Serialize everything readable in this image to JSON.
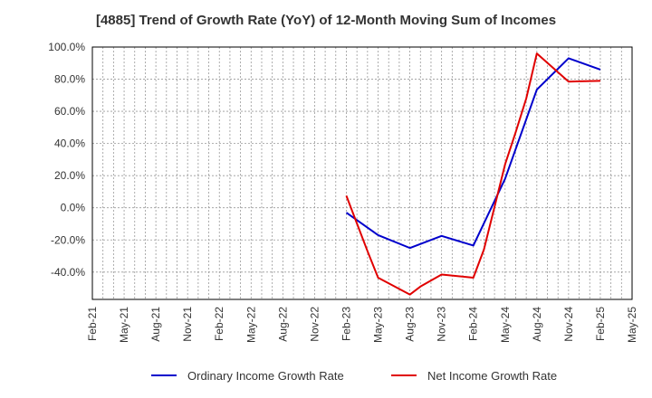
{
  "chart_data": {
    "type": "line",
    "title": "[4885]  Trend of Growth Rate (YoY) of 12-Month Moving Sum of Incomes",
    "xlabel": "",
    "ylabel": "",
    "ylim": [
      -57,
      100
    ],
    "yticks": [
      100,
      80,
      60,
      40,
      20,
      0,
      -20,
      -40
    ],
    "ytick_labels": [
      "100.0%",
      "80.0%",
      "60.0%",
      "40.0%",
      "20.0%",
      "0.0%",
      "-20.0%",
      "-40.0%"
    ],
    "x_categories": [
      "Feb-21",
      "Mar-21",
      "Apr-21",
      "May-21",
      "Jun-21",
      "Jul-21",
      "Aug-21",
      "Sep-21",
      "Oct-21",
      "Nov-21",
      "Dec-21",
      "Jan-22",
      "Feb-22",
      "Mar-22",
      "Apr-22",
      "May-22",
      "Jun-22",
      "Jul-22",
      "Aug-22",
      "Sep-22",
      "Oct-22",
      "Nov-22",
      "Dec-22",
      "Jan-23",
      "Feb-23",
      "Mar-23",
      "Apr-23",
      "May-23",
      "Jun-23",
      "Jul-23",
      "Aug-23",
      "Sep-23",
      "Oct-23",
      "Nov-23",
      "Dec-23",
      "Jan-24",
      "Feb-24",
      "Mar-24",
      "Apr-24",
      "May-24",
      "Jun-24",
      "Jul-24",
      "Aug-24",
      "Sep-24",
      "Oct-24",
      "Nov-24",
      "Dec-24",
      "Jan-25",
      "Feb-25",
      "Mar-25",
      "Apr-25",
      "May-25"
    ],
    "x_tick_labels": [
      "Feb-21",
      "May-21",
      "Aug-21",
      "Nov-21",
      "Feb-22",
      "May-22",
      "Aug-22",
      "Nov-22",
      "Feb-23",
      "May-23",
      "Aug-23",
      "Nov-23",
      "Feb-24",
      "May-24",
      "Aug-24",
      "Nov-24",
      "Feb-25",
      "May-25"
    ],
    "grid": true,
    "legend_position": "bottom",
    "series": [
      {
        "name": "Ordinary Income Growth Rate",
        "color": "#0000cc",
        "points": [
          {
            "x": "Feb-23",
            "y": -3
          },
          {
            "x": "May-23",
            "y": -17
          },
          {
            "x": "Aug-23",
            "y": -25
          },
          {
            "x": "Nov-23",
            "y": -17.5
          },
          {
            "x": "Feb-24",
            "y": -23.5
          },
          {
            "x": "May-24",
            "y": 18
          },
          {
            "x": "Aug-24",
            "y": 73.5
          },
          {
            "x": "Nov-24",
            "y": 93
          },
          {
            "x": "Feb-25",
            "y": 86
          }
        ]
      },
      {
        "name": "Net Income Growth Rate",
        "color": "#e00000",
        "points": [
          {
            "x": "Feb-23",
            "y": 7.5
          },
          {
            "x": "Apr-23",
            "y": -27
          },
          {
            "x": "May-23",
            "y": -43.5
          },
          {
            "x": "Aug-23",
            "y": -54
          },
          {
            "x": "Sep-23",
            "y": -49
          },
          {
            "x": "Nov-23",
            "y": -41.5
          },
          {
            "x": "Feb-24",
            "y": -43.5
          },
          {
            "x": "Mar-24",
            "y": -26
          },
          {
            "x": "May-24",
            "y": 27
          },
          {
            "x": "Jun-24",
            "y": 47
          },
          {
            "x": "Jul-24",
            "y": 68
          },
          {
            "x": "Aug-24",
            "y": 96
          },
          {
            "x": "Nov-24",
            "y": 78.5
          },
          {
            "x": "Feb-25",
            "y": 79
          }
        ]
      }
    ]
  }
}
